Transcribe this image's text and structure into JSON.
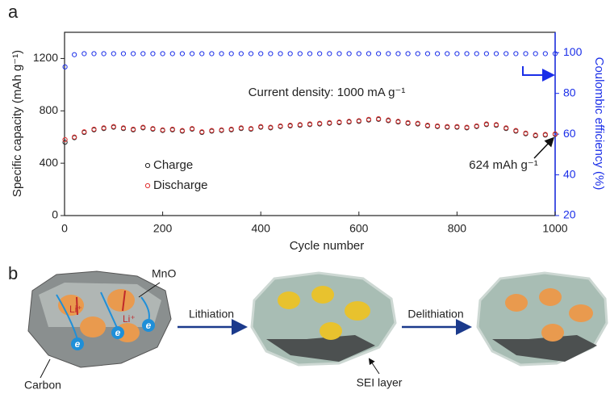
{
  "chart_data": {
    "type": "scatter",
    "panel_label": "a",
    "xlabel": "Cycle number",
    "ylabel": "Specific capacity (mAh g⁻¹)",
    "y2label": "Coulombic efficiency (%)",
    "annotations": [
      {
        "text": "Current density: 1000 mA g⁻¹"
      },
      {
        "text": "624 mAh g⁻¹",
        "x": 1000,
        "y": 624
      }
    ],
    "x": [
      1,
      20,
      40,
      60,
      80,
      100,
      120,
      140,
      160,
      180,
      200,
      220,
      240,
      260,
      280,
      300,
      320,
      340,
      360,
      380,
      400,
      420,
      440,
      460,
      480,
      500,
      520,
      540,
      560,
      580,
      600,
      620,
      640,
      660,
      680,
      700,
      720,
      740,
      760,
      780,
      800,
      820,
      840,
      860,
      880,
      900,
      920,
      940,
      960,
      980,
      1000
    ],
    "series": [
      {
        "name": "Charge",
        "color": "#222222",
        "values": [
          560,
          595,
          635,
          655,
          665,
          675,
          665,
          655,
          670,
          660,
          650,
          655,
          645,
          660,
          635,
          645,
          650,
          655,
          665,
          660,
          675,
          670,
          680,
          685,
          690,
          695,
          700,
          705,
          710,
          715,
          720,
          730,
          735,
          725,
          715,
          705,
          700,
          685,
          680,
          675,
          675,
          670,
          680,
          695,
          690,
          665,
          645,
          625,
          610,
          615,
          620
        ]
      },
      {
        "name": "Discharge",
        "color": "#e03030",
        "values": [
          580,
          600,
          640,
          660,
          670,
          680,
          670,
          660,
          675,
          665,
          655,
          660,
          650,
          665,
          640,
          650,
          655,
          660,
          670,
          665,
          680,
          675,
          685,
          690,
          695,
          700,
          705,
          710,
          715,
          720,
          725,
          735,
          740,
          730,
          720,
          710,
          705,
          690,
          685,
          680,
          680,
          675,
          685,
          700,
          695,
          670,
          650,
          630,
          615,
          620,
          624
        ]
      },
      {
        "color": "#1a2ee8",
        "axis": "y2",
        "values": [
          93,
          99,
          99.5,
          99.5,
          99.5,
          99.5,
          99.5,
          99.5,
          99.5,
          99.5,
          99.5,
          99.5,
          99.5,
          99.5,
          99.5,
          99.5,
          99.5,
          99.5,
          99.5,
          99.5,
          99.5,
          99.5,
          99.5,
          99.5,
          99.5,
          99.5,
          99.5,
          99.5,
          99.5,
          99.5,
          99.5,
          99.5,
          99.5,
          99.5,
          99.5,
          99.5,
          99.5,
          99.5,
          99.5,
          99.5,
          99.5,
          99.5,
          99.5,
          99.5,
          99.5,
          99.5,
          99.5,
          99.5,
          99.5,
          99.5,
          99.5
        ]
      }
    ],
    "xlim": [
      0,
      1000
    ],
    "xticks": [
      0,
      200,
      400,
      600,
      800,
      1000
    ],
    "ylim": [
      0,
      1400
    ],
    "yticks": [
      0,
      400,
      800,
      1200
    ],
    "y2lim": [
      20,
      110
    ],
    "y2ticks": [
      20,
      40,
      60,
      80,
      100
    ],
    "y2color": "#1a2ee8",
    "grid": false,
    "legend": "lower left"
  },
  "diagram": {
    "label": "b",
    "particle_label": "MnO",
    "li_labels": [
      "Li⁺",
      "Li⁺"
    ],
    "electron_labels": [
      "e",
      "e",
      "e"
    ],
    "steps": [
      "Lithiation",
      "Delithiation"
    ],
    "carbon_label": "Carbon",
    "sei_label": "SEI layer"
  }
}
